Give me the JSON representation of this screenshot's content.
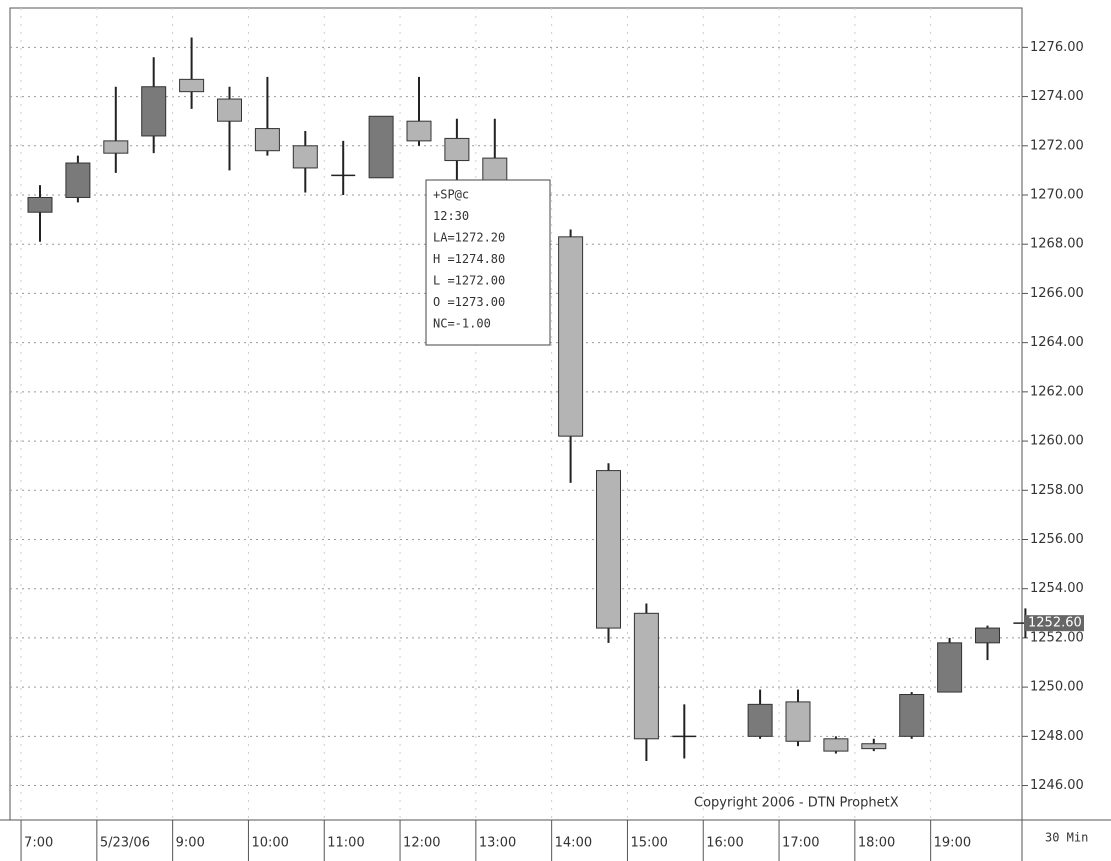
{
  "chart_data": {
    "type": "candlestick",
    "categories": [
      "7:00",
      null,
      "5/23/06",
      null,
      "9:00",
      null,
      "10:00",
      null,
      "11:00",
      null,
      "12:00",
      null,
      "13:00",
      null,
      "14:00",
      null,
      "15:00",
      null,
      "16:00",
      null,
      "17:00",
      null,
      "18:00",
      null,
      "19:00",
      null,
      null
    ],
    "open": [
      1269.3,
      1269.9,
      1272.2,
      1272.4,
      1274.7,
      1273.9,
      1272.7,
      1272.0,
      1270.8,
      1270.7,
      1273.0,
      1272.3,
      1271.5,
      null,
      1268.3,
      1258.8,
      1253.0,
      1248.0,
      null,
      1248.0,
      1249.4,
      1247.9,
      1247.7,
      1248.0,
      1249.8,
      1251.8,
      1252.6
    ],
    "high": [
      1270.4,
      1271.6,
      1274.4,
      1275.6,
      1276.4,
      1274.4,
      1274.8,
      1272.6,
      1272.2,
      1273.2,
      1274.8,
      1273.1,
      1273.1,
      null,
      1268.6,
      1259.1,
      1253.4,
      1249.3,
      null,
      1249.9,
      1249.9,
      1248.0,
      1247.9,
      1249.8,
      1252.0,
      1252.5,
      1253.2
    ],
    "low": [
      1268.1,
      1269.7,
      1270.9,
      1271.7,
      1273.5,
      1271.0,
      1271.6,
      1270.1,
      1270.0,
      1270.7,
      1272.0,
      1270.6,
      1269.5,
      null,
      1258.3,
      1251.8,
      1247.0,
      1247.1,
      null,
      1247.9,
      1247.6,
      1247.3,
      1247.4,
      1247.9,
      1249.8,
      1251.1,
      1252.0
    ],
    "close": [
      1269.9,
      1271.3,
      1271.7,
      1274.4,
      1274.2,
      1273.0,
      1271.8,
      1271.1,
      1270.8,
      1273.2,
      1272.2,
      1271.4,
      1270.0,
      null,
      1260.2,
      1252.4,
      1247.9,
      1248.0,
      null,
      1249.3,
      1247.8,
      1247.4,
      1247.5,
      1249.7,
      1251.8,
      1252.4,
      1252.6
    ],
    "up_color": "#7a7a7a",
    "down_color": "#b4b4b4",
    "ylim": [
      1244.6,
      1277.6
    ],
    "yticks": [
      {
        "value": 1246,
        "label": "1246.00"
      },
      {
        "value": 1248,
        "label": "1248.00"
      },
      {
        "value": 1250,
        "label": "1250.00"
      },
      {
        "value": 1252,
        "label": "1252.00"
      },
      {
        "value": 1254,
        "label": "1254.00"
      },
      {
        "value": 1256,
        "label": "1256.00"
      },
      {
        "value": 1258,
        "label": "1258.00"
      },
      {
        "value": 1260,
        "label": "1260.00"
      },
      {
        "value": 1262,
        "label": "1262.00"
      },
      {
        "value": 1264,
        "label": "1264.00"
      },
      {
        "value": 1266,
        "label": "1266.00"
      },
      {
        "value": 1268,
        "label": "1268.00"
      },
      {
        "value": 1270,
        "label": "1270.00"
      },
      {
        "value": 1272,
        "label": "1272.00"
      },
      {
        "value": 1274,
        "label": "1274.00"
      },
      {
        "value": 1276,
        "label": "1276.00"
      }
    ],
    "grid": true,
    "last_price": {
      "value": 1252.6,
      "label": "1252.60"
    },
    "interval_label": "30 Min",
    "copyright": "Copyright 2006 - DTN ProphetX",
    "tooltip": {
      "lines": [
        "+SP@c",
        "12:30",
        "LA=1272.20",
        "H =1274.80",
        "L =1272.00",
        "O =1273.00",
        "NC=-1.00"
      ]
    }
  }
}
